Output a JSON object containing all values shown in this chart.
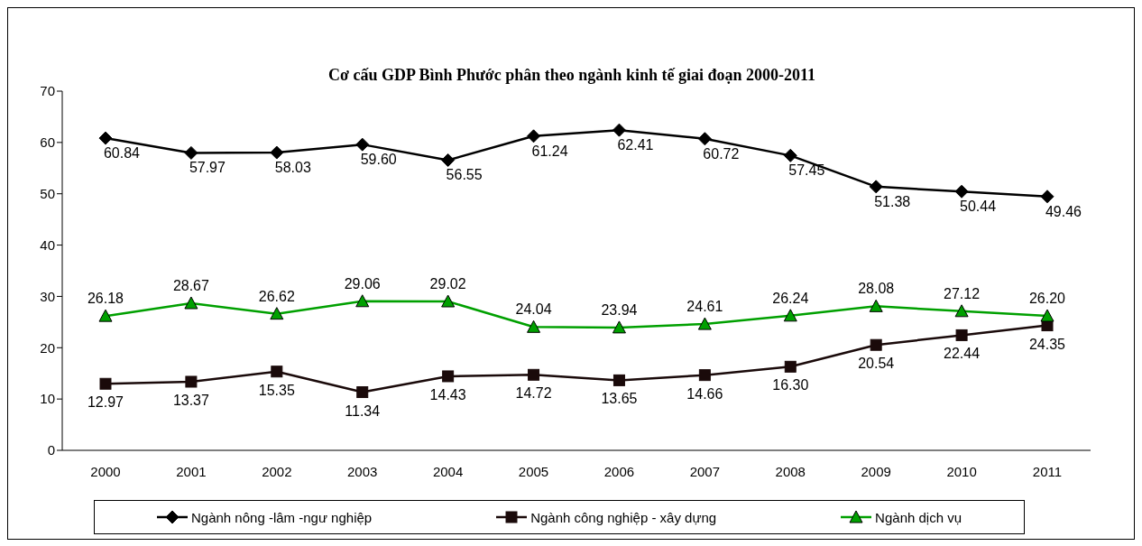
{
  "chart_data": {
    "type": "line",
    "title": "Cơ cấu GDP Bình Phước phân theo ngành kinh tế giai đoạn 2000-2011",
    "categories": [
      "2000",
      "2001",
      "2002",
      "2003",
      "2004",
      "2005",
      "2006",
      "2007",
      "2008",
      "2009",
      "2010",
      "2011"
    ],
    "ylim": [
      0,
      70
    ],
    "yticks": [
      0,
      10,
      20,
      30,
      40,
      50,
      60,
      70
    ],
    "grid": false,
    "legend": "bottom",
    "series": [
      {
        "name": "Ngành nông -lâm -ngư nghiệp",
        "color": "#000000",
        "marker": "diamond",
        "values": [
          60.84,
          57.97,
          58.03,
          59.6,
          56.55,
          61.24,
          62.41,
          60.72,
          57.45,
          51.38,
          50.44,
          49.46
        ],
        "value_labels": [
          "60.84",
          "57.97",
          "58.03",
          "59.60",
          "56.55",
          "61.24",
          "62.41",
          "60.72",
          "57.45",
          "51.38",
          "50.44",
          "49.46"
        ]
      },
      {
        "name": "Ngành công nghiệp - xây dựng",
        "color": "#1a0a0a",
        "marker": "square",
        "values": [
          12.97,
          13.37,
          15.35,
          11.34,
          14.43,
          14.72,
          13.65,
          14.66,
          16.3,
          20.54,
          22.44,
          24.35
        ],
        "value_labels": [
          "12.97",
          "13.37",
          "15.35",
          "11.34",
          "14.43",
          "14.72",
          "13.65",
          "14.66",
          "16.30",
          "20.54",
          "22.44",
          "24.35"
        ]
      },
      {
        "name": "Ngành dịch vụ",
        "color": "#00a000",
        "marker": "triangle",
        "values": [
          26.18,
          28.67,
          26.62,
          29.06,
          29.02,
          24.04,
          23.94,
          24.61,
          26.24,
          28.08,
          27.12,
          26.2
        ],
        "value_labels": [
          "26.18",
          "28.67",
          "26.62",
          "29.06",
          "29.02",
          "24.04",
          "23.94",
          "24.61",
          "26.24",
          "28.08",
          "27.12",
          "26.20"
        ]
      }
    ]
  }
}
